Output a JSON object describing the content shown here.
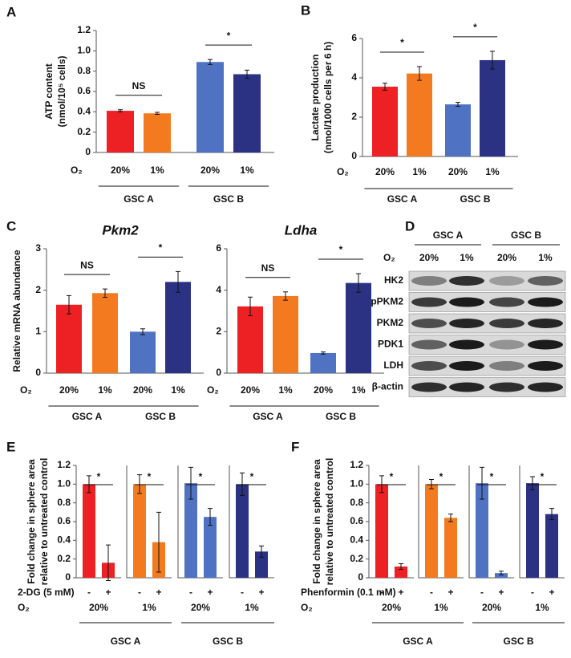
{
  "chart_data": [
    {
      "type": "bar",
      "panel": "A",
      "ylabel": [
        "ATP content",
        "(nmol/10⁵ cells)"
      ],
      "categories": [
        "20%",
        "1%",
        "20%",
        "1%"
      ],
      "o2_label": "O₂",
      "groups": [
        "GSC A",
        "GSC B"
      ],
      "values": [
        0.41,
        0.385,
        0.89,
        0.77
      ],
      "errors": [
        0.01,
        0.01,
        0.025,
        0.04
      ],
      "colors": [
        "#ed2024",
        "#f47a20",
        "#4f72c3",
        "#2b3283"
      ],
      "significance": [
        "NS",
        "*"
      ],
      "ylim": [
        0,
        1.2
      ],
      "yticks": [
        0,
        0.2,
        0.4,
        0.6,
        0.8,
        {
          "value": 1,
          "label": "1.0"
        },
        1.2
      ]
    },
    {
      "type": "bar",
      "panel": "B",
      "ylabel": [
        "Lactate production",
        "(nmol/1000 cells per 6 h)"
      ],
      "categories": [
        "20%",
        "1%",
        "20%",
        "1%"
      ],
      "o2_label": "O₂",
      "groups": [
        "GSC A",
        "GSC B"
      ],
      "values": [
        3.55,
        4.22,
        2.65,
        4.9
      ],
      "errors": [
        0.18,
        0.35,
        0.1,
        0.45
      ],
      "colors": [
        "#ed2024",
        "#f47a20",
        "#4f72c3",
        "#2b3283"
      ],
      "significance": [
        "*",
        "*"
      ],
      "ylim": [
        0,
        6
      ],
      "yticks": [
        0,
        2,
        4,
        6
      ]
    },
    {
      "type": "bar",
      "panel": "C",
      "title": "Pkm2",
      "ylabel": [
        "Relative mRNA abundance"
      ],
      "categories": [
        "20%",
        "1%",
        "20%",
        "1%"
      ],
      "o2_label": "O₂",
      "groups": [
        "GSC A",
        "GSC B"
      ],
      "values": [
        1.65,
        1.93,
        1.0,
        2.2
      ],
      "errors": [
        0.22,
        0.1,
        0.07,
        0.25
      ],
      "colors": [
        "#ed2024",
        "#f47a20",
        "#4f72c3",
        "#2b3283"
      ],
      "significance": [
        "NS",
        "*"
      ],
      "ylim": [
        0,
        3
      ],
      "yticks": [
        0,
        1,
        2,
        3
      ]
    },
    {
      "type": "bar",
      "title": "Ldha",
      "categories": [
        "20%",
        "1%",
        "20%",
        "1%"
      ],
      "o2_label": "O₂",
      "groups": [
        "GSC A",
        "GSC B"
      ],
      "values": [
        3.22,
        3.72,
        0.97,
        4.35
      ],
      "errors": [
        0.45,
        0.2,
        0.05,
        0.45
      ],
      "colors": [
        "#ed2024",
        "#f47a20",
        "#4f72c3",
        "#2b3283"
      ],
      "significance": [
        "NS",
        "*"
      ],
      "ylim": [
        0,
        6
      ],
      "yticks": [
        0,
        2,
        4,
        6
      ]
    },
    {
      "type": "bar",
      "panel": "E",
      "ylabel": [
        "Fold change in sphere area",
        "relative to untreated control"
      ],
      "treatment_label": "2-DG (5 mM)",
      "categories": [
        "-",
        "+"
      ],
      "o2_label": "O₂",
      "groups": [
        "GSC A",
        "GSC B"
      ],
      "subplots": [
        {
          "condition": "20%",
          "color": "#ed2024",
          "values": [
            1.0,
            0.16
          ],
          "errors": [
            0.09,
            0.19
          ]
        },
        {
          "condition": "1%",
          "color": "#f47a20",
          "values": [
            1.0,
            0.38
          ],
          "errors": [
            0.1,
            0.32
          ]
        },
        {
          "condition": "20%",
          "color": "#4f72c3",
          "values": [
            1.01,
            0.65
          ],
          "errors": [
            0.17,
            0.09
          ]
        },
        {
          "condition": "1%",
          "color": "#2b3283",
          "values": [
            1.0,
            0.28
          ],
          "errors": [
            0.12,
            0.06
          ]
        }
      ],
      "significance": [
        "*",
        "*",
        "*",
        "*"
      ],
      "ylim": [
        0,
        1.2
      ],
      "yticks": [
        0,
        0.2,
        0.4,
        0.6,
        0.8,
        {
          "value": 1,
          "label": "1.0"
        },
        1.2
      ]
    },
    {
      "type": "bar",
      "panel": "F",
      "ylabel": [
        "Fold change in sphere area",
        "relative to untreated control"
      ],
      "treatment_label": "Phenformin (0.1 mM)",
      "categories": [
        "-",
        "+"
      ],
      "o2_label": "O₂",
      "groups": [
        "GSC A",
        "GSC B"
      ],
      "subplots": [
        {
          "condition": "20%",
          "color": "#ed2024",
          "values": [
            1.0,
            0.12
          ],
          "errors": [
            0.09,
            0.03
          ]
        },
        {
          "condition": "1%",
          "color": "#f47a20",
          "values": [
            1.0,
            0.64
          ],
          "errors": [
            0.05,
            0.04
          ]
        },
        {
          "condition": "20%",
          "color": "#4f72c3",
          "values": [
            1.01,
            0.05
          ],
          "errors": [
            0.17,
            0.02
          ]
        },
        {
          "condition": "1%",
          "color": "#2b3283",
          "values": [
            1.01,
            0.68
          ],
          "errors": [
            0.07,
            0.06
          ]
        }
      ],
      "significance": [
        "*",
        "*",
        "*",
        "*"
      ],
      "ylim": [
        0,
        1.2
      ],
      "yticks": [
        0,
        0.2,
        0.4,
        0.6,
        0.8,
        {
          "value": 1,
          "label": "1.0"
        },
        1.2
      ]
    }
  ],
  "blot": {
    "panel": "D",
    "groups": [
      "GSC A",
      "GSC B"
    ],
    "o2_label": "O₂",
    "conditions": [
      "20%",
      "1%",
      "20%",
      "1%"
    ],
    "rows": [
      "HK2",
      "pPKM2",
      "PKM2",
      "PDK1",
      "LDH",
      "β-actin"
    ]
  }
}
